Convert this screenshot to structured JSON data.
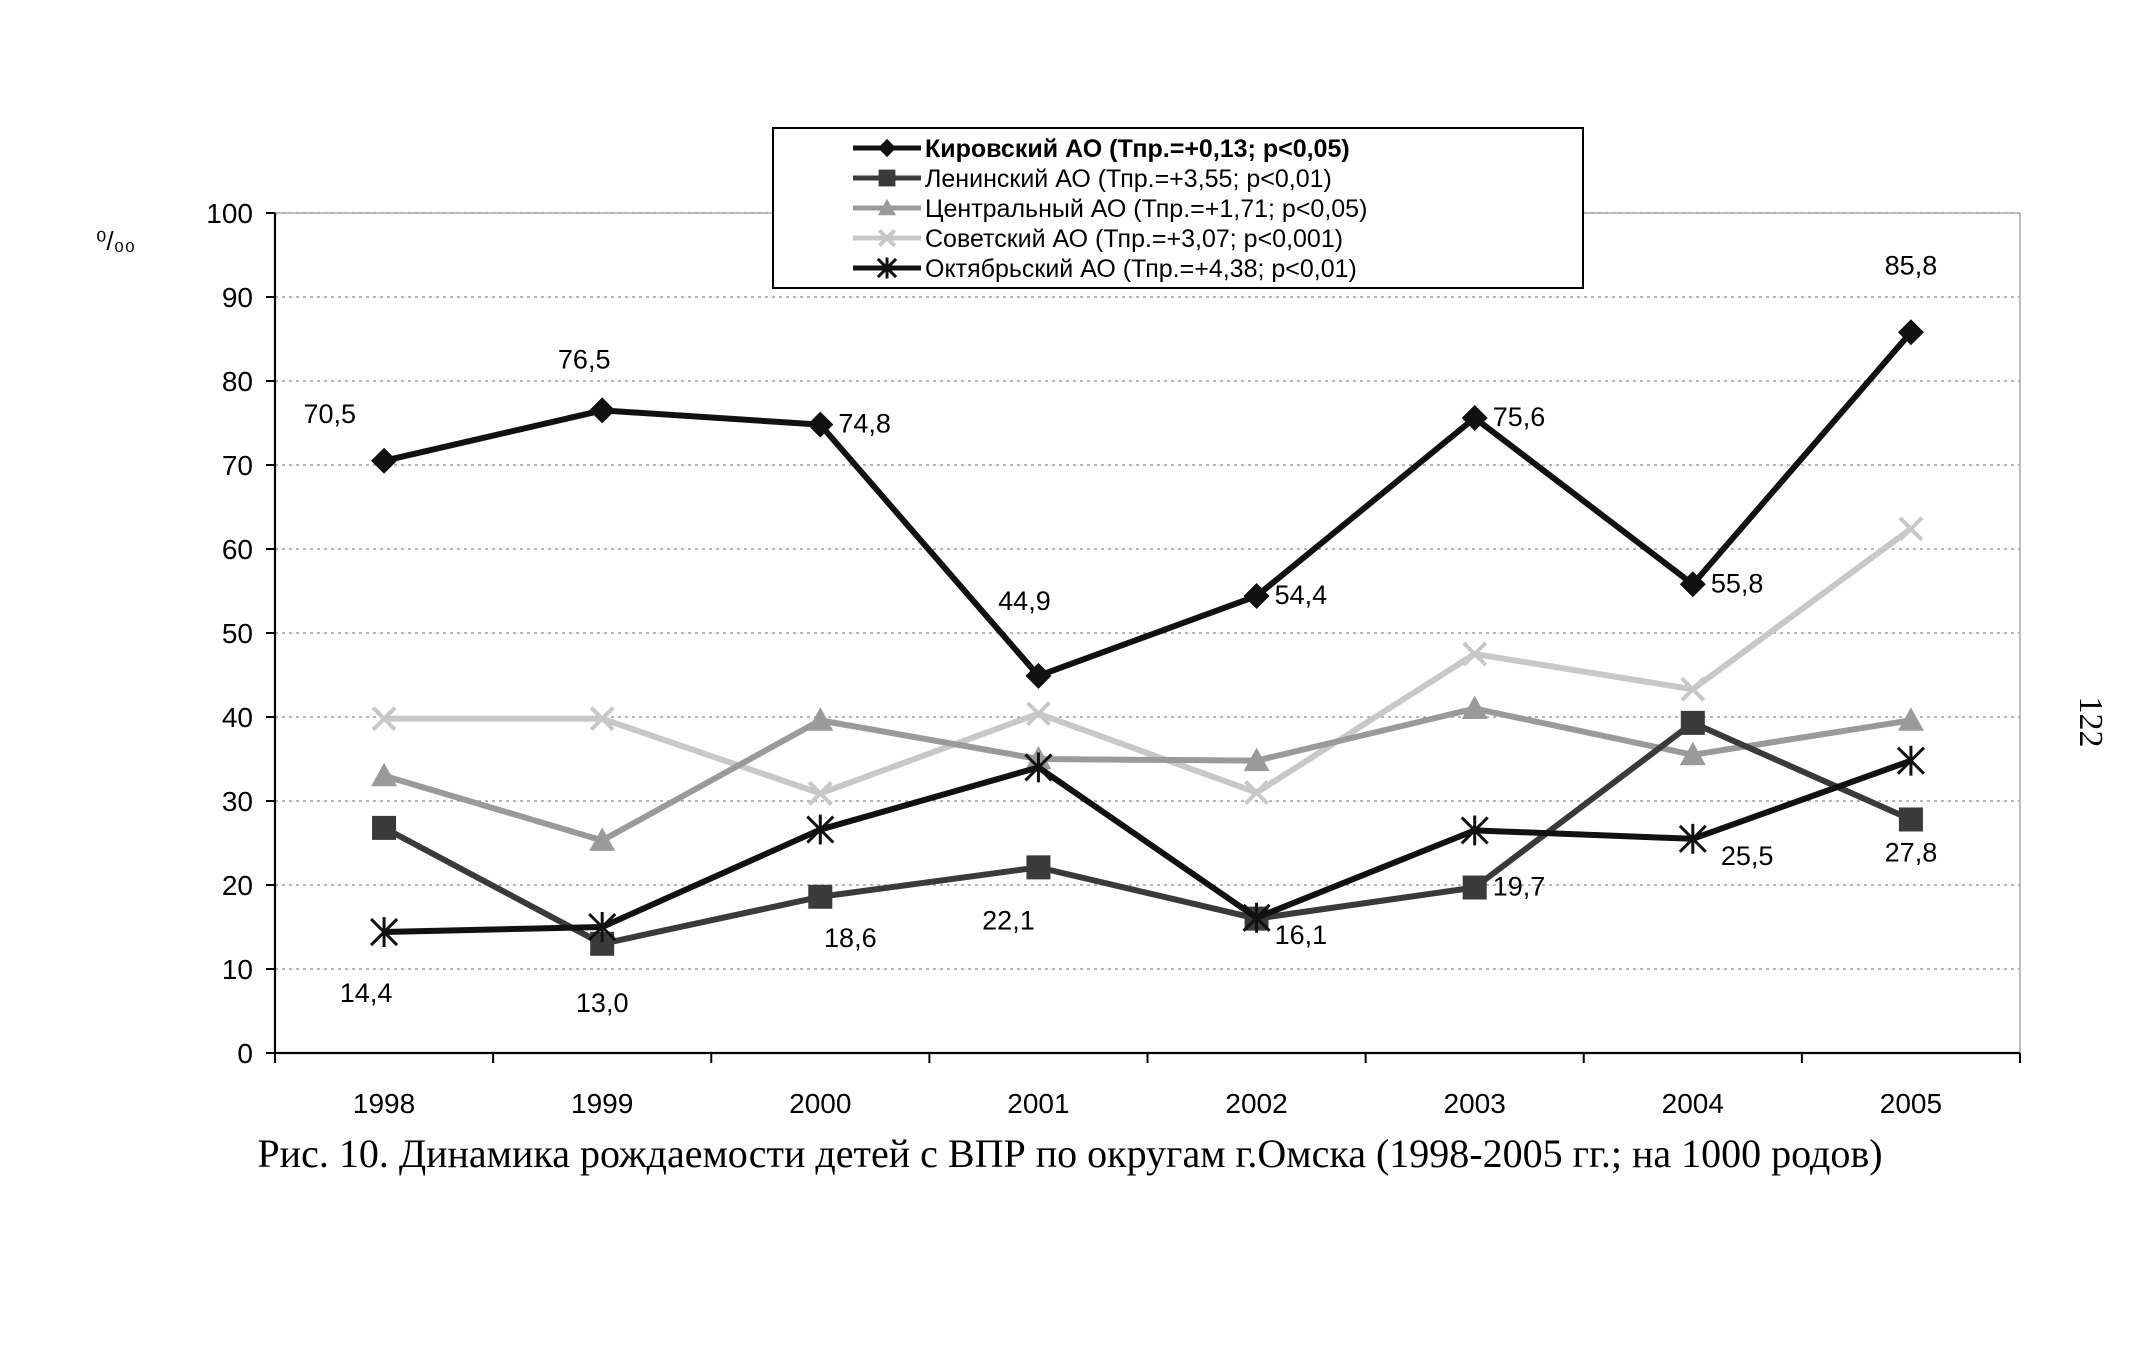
{
  "page_number": "122",
  "caption": "Рис. 10. Динамика рождаемости детей с ВПР по округам г.Омска (1998-2005 гг.; на 1000 родов)",
  "chart_data": {
    "type": "line",
    "title": "",
    "xlabel": "",
    "ylabel": "⁰/₀₀",
    "categories": [
      "1998",
      "1999",
      "2000",
      "2001",
      "2002",
      "2003",
      "2004",
      "2005"
    ],
    "ylim": [
      0,
      100
    ],
    "yticks": [
      0,
      10,
      20,
      30,
      40,
      50,
      60,
      70,
      80,
      90,
      100
    ],
    "grid": true,
    "legend_position": "top-center",
    "series": [
      {
        "name": "Кировский АО (Тпр.=+0,13; р<0,05)",
        "marker": "diamond",
        "color": "#111111",
        "values": [
          70.5,
          76.5,
          74.8,
          44.9,
          54.4,
          75.6,
          55.8,
          85.8
        ],
        "labels": [
          "70,5",
          "76,5",
          "74,8",
          "44,9",
          "54,4",
          "75,6",
          "55,8",
          "85,8"
        ]
      },
      {
        "name": "Ленинский АО (Тпр.=+3,55; р<0,01)",
        "marker": "square",
        "color": "#3a3a3a",
        "values": [
          26.8,
          13.0,
          18.6,
          22.1,
          16.0,
          19.7,
          39.3,
          27.8
        ],
        "labels": [
          "",
          "13,0",
          "18,6",
          "22,1",
          "",
          "19,7",
          "",
          "27,8"
        ]
      },
      {
        "name": "Центральный АО (Тпр.=+1,71; р<0,05)",
        "marker": "triangle",
        "color": "#9a9a9a",
        "values": [
          33.0,
          25.3,
          39.6,
          35.0,
          34.8,
          41.0,
          35.5,
          39.6
        ],
        "labels": []
      },
      {
        "name": "Советский АО (Тпр.=+3,07; р<0,001)",
        "marker": "x",
        "color": "#c8c8c8",
        "values": [
          39.8,
          39.8,
          30.9,
          40.4,
          31.0,
          47.5,
          43.3,
          62.4
        ],
        "labels": []
      },
      {
        "name": "Октябрьский АО (Тпр.=+4,38; р<0,01)",
        "marker": "asterisk",
        "color": "#111111",
        "values": [
          14.4,
          15.0,
          26.6,
          34.0,
          16.1,
          26.5,
          25.5,
          34.8
        ],
        "labels": [
          "14,4",
          "",
          "",
          "",
          "16,1",
          "",
          "25,5",
          ""
        ]
      }
    ]
  }
}
